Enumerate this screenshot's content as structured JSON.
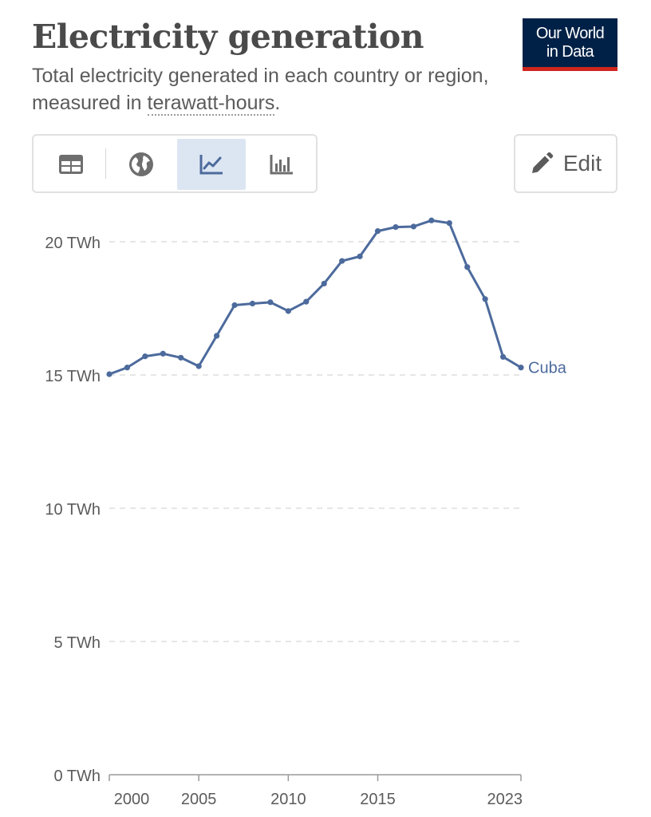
{
  "header": {
    "title": "Electricity generation",
    "subtitle_before": "Total electricity generated in each country or region, measured in ",
    "subtitle_term": "terawatt-hours",
    "subtitle_after": "."
  },
  "logo": {
    "line1": "Our World",
    "line2": "in Data"
  },
  "tabs": [
    {
      "name": "table",
      "icon": "table-icon",
      "active": false
    },
    {
      "name": "map",
      "icon": "globe-icon",
      "active": false
    },
    {
      "name": "line-chart",
      "icon": "line-chart-icon",
      "active": true
    },
    {
      "name": "bar-chart",
      "icon": "bar-chart-icon",
      "active": false
    }
  ],
  "edit_button": {
    "label": "Edit",
    "icon": "pencil-icon"
  },
  "colors": {
    "series": "#4c6a9c",
    "grid": "#dddddd",
    "text": "#5b5b5b",
    "active_tab": "#dce6f2",
    "logo_bg": "#002147",
    "logo_accent": "#ce261e"
  },
  "chart_data": {
    "type": "line",
    "title": "Electricity generation",
    "xlabel": "",
    "ylabel": "",
    "ylim": [
      0,
      21
    ],
    "xlim": [
      2000,
      2023
    ],
    "y_ticks": [
      0,
      5,
      10,
      15,
      20
    ],
    "y_tick_labels": [
      "0 TWh",
      "5 TWh",
      "10 TWh",
      "15 TWh",
      "20 TWh"
    ],
    "x_ticks": [
      2000,
      2005,
      2010,
      2015,
      2023
    ],
    "x_tick_labels": [
      "2000",
      "2005",
      "2010",
      "2015",
      "2023"
    ],
    "grid": true,
    "series": [
      {
        "name": "Cuba",
        "x": [
          2000,
          2001,
          2002,
          2003,
          2004,
          2005,
          2006,
          2007,
          2008,
          2009,
          2010,
          2011,
          2012,
          2013,
          2014,
          2015,
          2016,
          2017,
          2018,
          2019,
          2020,
          2021,
          2022,
          2023
        ],
        "values": [
          15.03,
          15.28,
          15.7,
          15.8,
          15.65,
          15.33,
          16.47,
          17.62,
          17.68,
          17.73,
          17.4,
          17.75,
          18.43,
          19.28,
          19.45,
          20.4,
          20.55,
          20.57,
          20.8,
          20.7,
          19.05,
          17.85,
          15.68,
          15.28
        ]
      }
    ]
  }
}
